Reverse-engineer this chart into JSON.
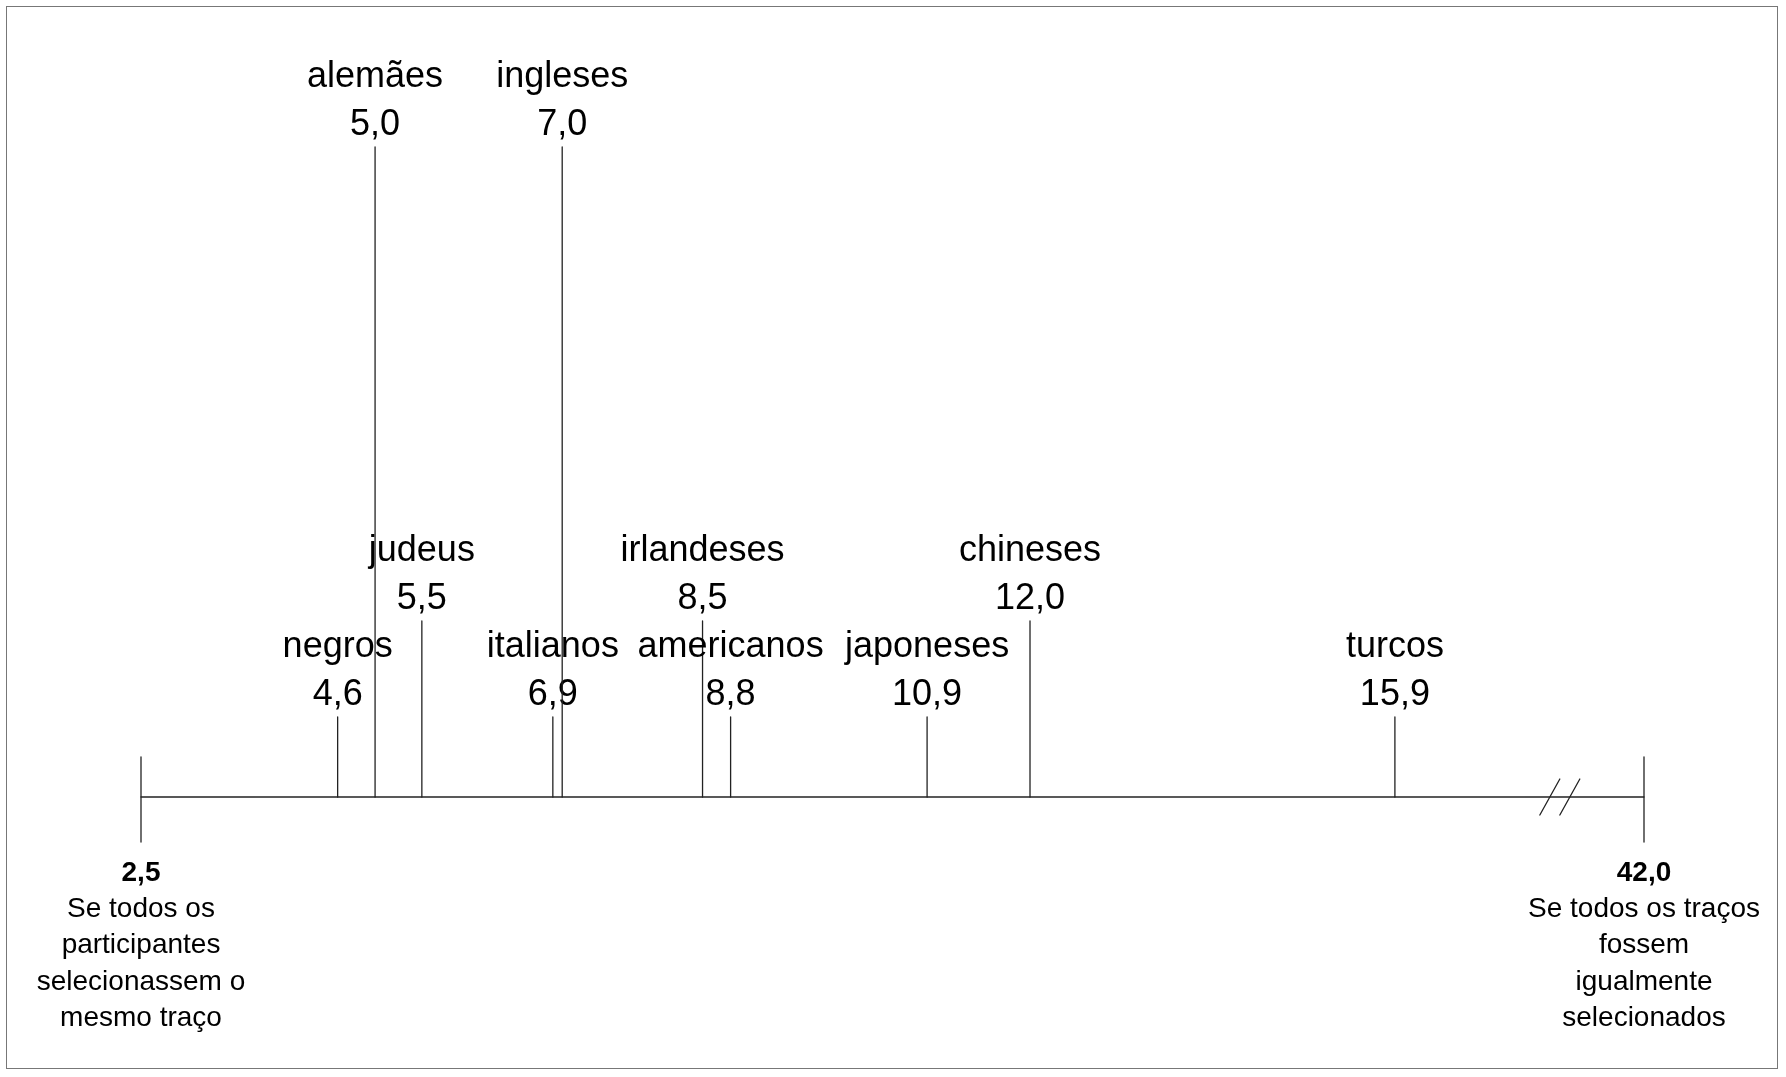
{
  "chart_data": {
    "type": "other",
    "categories": [
      "negros",
      "alemães",
      "judeus",
      "italianos",
      "ingleses",
      "irlandeses",
      "americanos",
      "japoneses",
      "chineses",
      "turcos"
    ],
    "values": [
      4.6,
      5.0,
      5.5,
      6.9,
      7.0,
      8.5,
      8.8,
      10.9,
      12.0,
      15.9
    ],
    "value_labels": [
      "4,6",
      "5,0",
      "5,5",
      "6,9",
      "7,0",
      "8,5",
      "8,8",
      "10,9",
      "12,0",
      "15,9"
    ],
    "annotations": [
      "2,5",
      "Se todos os participantes selecionassem o mesmo traço",
      "42,0",
      "Se todos os traços fossem igualmente selecionados"
    ]
  }
}
